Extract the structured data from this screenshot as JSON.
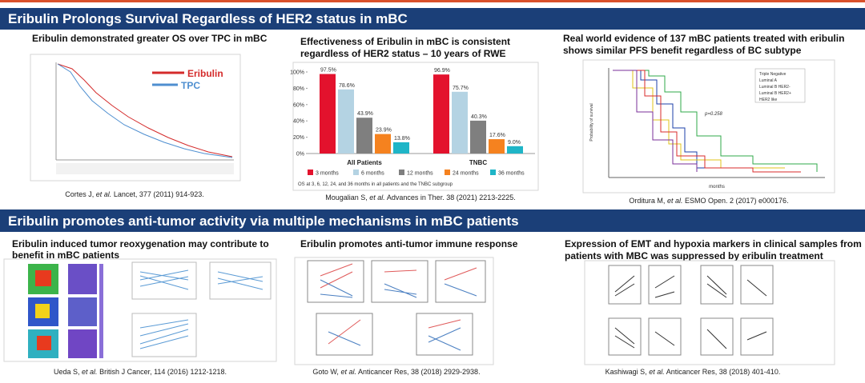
{
  "sections": [
    {
      "title": "Eribulin Prolongs Survival Regardless of HER2 status in mBC",
      "panels": [
        {
          "heading": [
            "Eribulin demonstrated greater OS over TPC in mBC"
          ],
          "legend": [
            "Eribulin",
            "TPC"
          ],
          "citation": {
            "authors": "Cortes J,",
            "et_al": "et al.",
            "source": "Lancet, 377 (2011) 914-923."
          }
        },
        {
          "heading": [
            "Effectiveness of Eribulin in mBC is consistent",
            "regardless of HER2 status – 10 years of RWE"
          ],
          "chart_data": {
            "type": "bar",
            "categories": [
              "All Patients",
              "TNBC"
            ],
            "series": [
              {
                "name": "3 months",
                "color": "#e3122d",
                "values": [
                  97.5,
                  96.9
                ],
                "value_labels": [
                  "97.5%",
                  "96.9%"
                ]
              },
              {
                "name": "6 months",
                "color": "#b4d3e3",
                "values": [
                  78.6,
                  75.7
                ],
                "value_labels": [
                  "78.6%",
                  "75.7%"
                ]
              },
              {
                "name": "12 months",
                "color": "#7f7f7f",
                "values": [
                  43.9,
                  40.3
                ],
                "value_labels": [
                  "43.9%",
                  "40.3%"
                ]
              },
              {
                "name": "24 months",
                "color": "#f5821f",
                "values": [
                  23.9,
                  17.6
                ],
                "value_labels": [
                  "23.9%",
                  "17.6%"
                ]
              },
              {
                "name": "36 months",
                "color": "#1fb5c7",
                "values": [
                  13.8,
                  9.0
                ],
                "value_labels": [
                  "13.8%",
                  "9.0%"
                ]
              }
            ],
            "ylim": [
              0,
              100
            ],
            "yticks": [
              {
                "value": 0,
                "label": "0%"
              },
              {
                "value": 20,
                "label": "20%"
              },
              {
                "value": 40,
                "label": "40%"
              },
              {
                "value": 60,
                "label": "60%"
              },
              {
                "value": 80,
                "label": "80%"
              },
              {
                "value": 100,
                "label": "100%"
              }
            ],
            "footnote": "OS at 3, 6, 12, 24, and 36 months in all patients and the TNBC subgroup"
          },
          "citation": {
            "authors": "Mougalian S,",
            "et_al": "et al.",
            "source": "Advances in Ther. 38 (2021) 2213-2225."
          }
        },
        {
          "heading": [
            "Real world evidence of 137 mBC patients treated with eribulin",
            "shows similar PFS benefit regardless of BC subtype"
          ],
          "plot_labels": {
            "legend": [
              "Triple Negative",
              "Luminal A",
              "Luminal B HER2-",
              "Luminal B HER2+",
              "HER2 like"
            ],
            "p_value": "p=0.258",
            "x_label": "months",
            "y_label": "Probability of survival"
          },
          "citation": {
            "authors": "Orditura M,",
            "et_al": "et al.",
            "source": "ESMO Open. 2 (2017) e000176."
          }
        }
      ]
    },
    {
      "title": "Eribulin promotes anti-tumor activity via multiple mechanisms in mBC patients",
      "panels": [
        {
          "heading": [
            "Eribulin induced tumor reoxygenation may contribute to",
            "benefit in mBC patients"
          ],
          "citation": {
            "authors": "Ueda S,",
            "et_al": "et al.",
            "source": "British J Cancer, 114 (2016) 1212-1218."
          }
        },
        {
          "heading": [
            "Eribulin promotes anti-tumor immune response"
          ],
          "citation": {
            "authors": "Goto W,",
            "et_al": "et al.",
            "source": "Anticancer Res, 38 (2018) 2929-2938."
          }
        },
        {
          "heading": [
            "Expression of EMT and hypoxia markers in clinical samples from",
            "patients with MBC was suppressed by eribulin treatment"
          ],
          "citation": {
            "authors": "Kashiwagi S,",
            "et_al": "et al.",
            "source": "Anticancer Res, 38 (2018) 401-410."
          }
        }
      ]
    }
  ]
}
